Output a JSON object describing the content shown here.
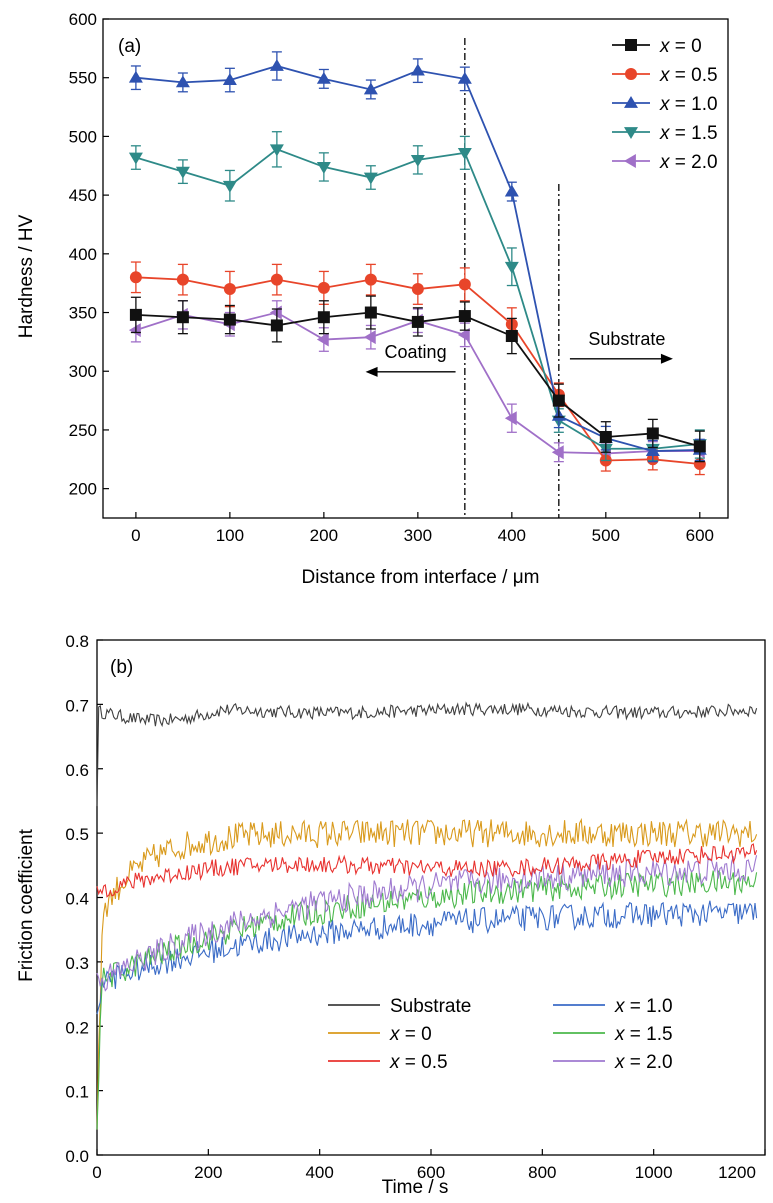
{
  "figure": {
    "panels": [
      "(a)",
      "(b)"
    ]
  },
  "chart_data": [
    {
      "type": "line",
      "panel_label": "(a)",
      "xlabel": "Distance from interface / μm",
      "ylabel": "Hardness / HV",
      "xlim": [
        -35,
        630
      ],
      "ylim": [
        175,
        600
      ],
      "xticks": [
        0,
        100,
        200,
        300,
        400,
        500,
        600
      ],
      "yticks": [
        200,
        250,
        300,
        350,
        400,
        450,
        500,
        550,
        600
      ],
      "x": [
        0,
        50,
        100,
        150,
        200,
        250,
        300,
        350,
        400,
        450,
        500,
        550,
        600
      ],
      "legend_position": "top-right",
      "series": [
        {
          "name_prefix": "x",
          "name_suffix": " = 0",
          "color": "#111111",
          "marker": "square",
          "values": [
            348,
            346,
            344,
            339,
            346,
            350,
            342,
            347,
            330,
            275,
            244,
            247,
            236
          ],
          "errors": [
            15,
            14,
            12,
            14,
            14,
            14,
            12,
            12,
            15,
            14,
            13,
            12,
            13
          ]
        },
        {
          "name_prefix": "x",
          "name_suffix": " = 0.5",
          "color": "#e8452a",
          "marker": "circle",
          "values": [
            380,
            378,
            370,
            378,
            371,
            378,
            370,
            374,
            340,
            280,
            224,
            225,
            221
          ],
          "errors": [
            13,
            13,
            15,
            13,
            14,
            13,
            13,
            14,
            14,
            10,
            9,
            9,
            9
          ]
        },
        {
          "name_prefix": "x",
          "name_suffix": " = 1.0",
          "color": "#2e52b0",
          "marker": "triangle-up",
          "values": [
            550,
            546,
            548,
            560,
            549,
            540,
            556,
            549,
            453,
            262,
            243,
            232,
            233
          ],
          "errors": [
            10,
            8,
            10,
            12,
            8,
            8,
            10,
            10,
            8,
            10,
            10,
            9,
            9
          ]
        },
        {
          "name_prefix": "x",
          "name_suffix": " = 1.5",
          "color": "#2e8a88",
          "marker": "triangle-down",
          "values": [
            482,
            470,
            458,
            489,
            474,
            465,
            480,
            486,
            389,
            258,
            234,
            234,
            238
          ],
          "errors": [
            10,
            10,
            13,
            15,
            12,
            10,
            12,
            14,
            16,
            10,
            10,
            10,
            12
          ]
        },
        {
          "name_prefix": "x",
          "name_suffix": " = 2.0",
          "color": "#a070c8",
          "marker": "triangle-left",
          "values": [
            335,
            348,
            340,
            350,
            327,
            329,
            343,
            331,
            260,
            231,
            230,
            232,
            232
          ],
          "errors": [
            10,
            12,
            10,
            10,
            10,
            10,
            10,
            10,
            12,
            8,
            8,
            8,
            8
          ]
        }
      ],
      "annotations": [
        {
          "text": "Coating",
          "x": 255,
          "y": 308,
          "arrow": "left"
        },
        {
          "text": "Substrate",
          "x": 465,
          "y": 314,
          "arrow": "right"
        }
      ],
      "dash_dot_lines_x": [
        350,
        450
      ]
    },
    {
      "type": "line",
      "panel_label": "(b)",
      "xlabel": "Time / s",
      "ylabel": "Friction coefficient",
      "xlim": [
        0,
        1200
      ],
      "ylim": [
        0.0,
        0.8
      ],
      "xticks": [
        0,
        200,
        400,
        600,
        800,
        1000,
        1200
      ],
      "yticks": [
        0.0,
        0.1,
        0.2,
        0.3,
        0.4,
        0.5,
        0.6,
        0.7,
        0.8
      ],
      "legend_position": "lower-right",
      "series": [
        {
          "name_prefix": "",
          "name_suffix": "Substrate",
          "color": "#404040",
          "start": 0.55,
          "level": 0.69,
          "noise": 0.01,
          "trend": "flat"
        },
        {
          "name_prefix": "x",
          "name_suffix": " = 0",
          "color": "#d99a1c",
          "start": 0.05,
          "level": 0.5,
          "noise": 0.022,
          "trend": "rise-fast"
        },
        {
          "name_prefix": "x",
          "name_suffix": " = 0.5",
          "color": "#e8322f",
          "start": 0.43,
          "level": 0.46,
          "noise": 0.014,
          "trend": "slow"
        },
        {
          "name_prefix": "x",
          "name_suffix": " = 1.0",
          "color": "#3b6cc7",
          "start": 0.2,
          "level": 0.38,
          "noise": 0.02,
          "trend": "rise-slow"
        },
        {
          "name_prefix": "x",
          "name_suffix": " = 1.5",
          "color": "#4cb84c",
          "start": 0.05,
          "level": 0.43,
          "noise": 0.02,
          "trend": "rise-slow"
        },
        {
          "name_prefix": "x",
          "name_suffix": " = 2.0",
          "color": "#9f7ad0",
          "start": 0.3,
          "level": 0.45,
          "noise": 0.022,
          "trend": "rise-slow"
        }
      ]
    }
  ]
}
